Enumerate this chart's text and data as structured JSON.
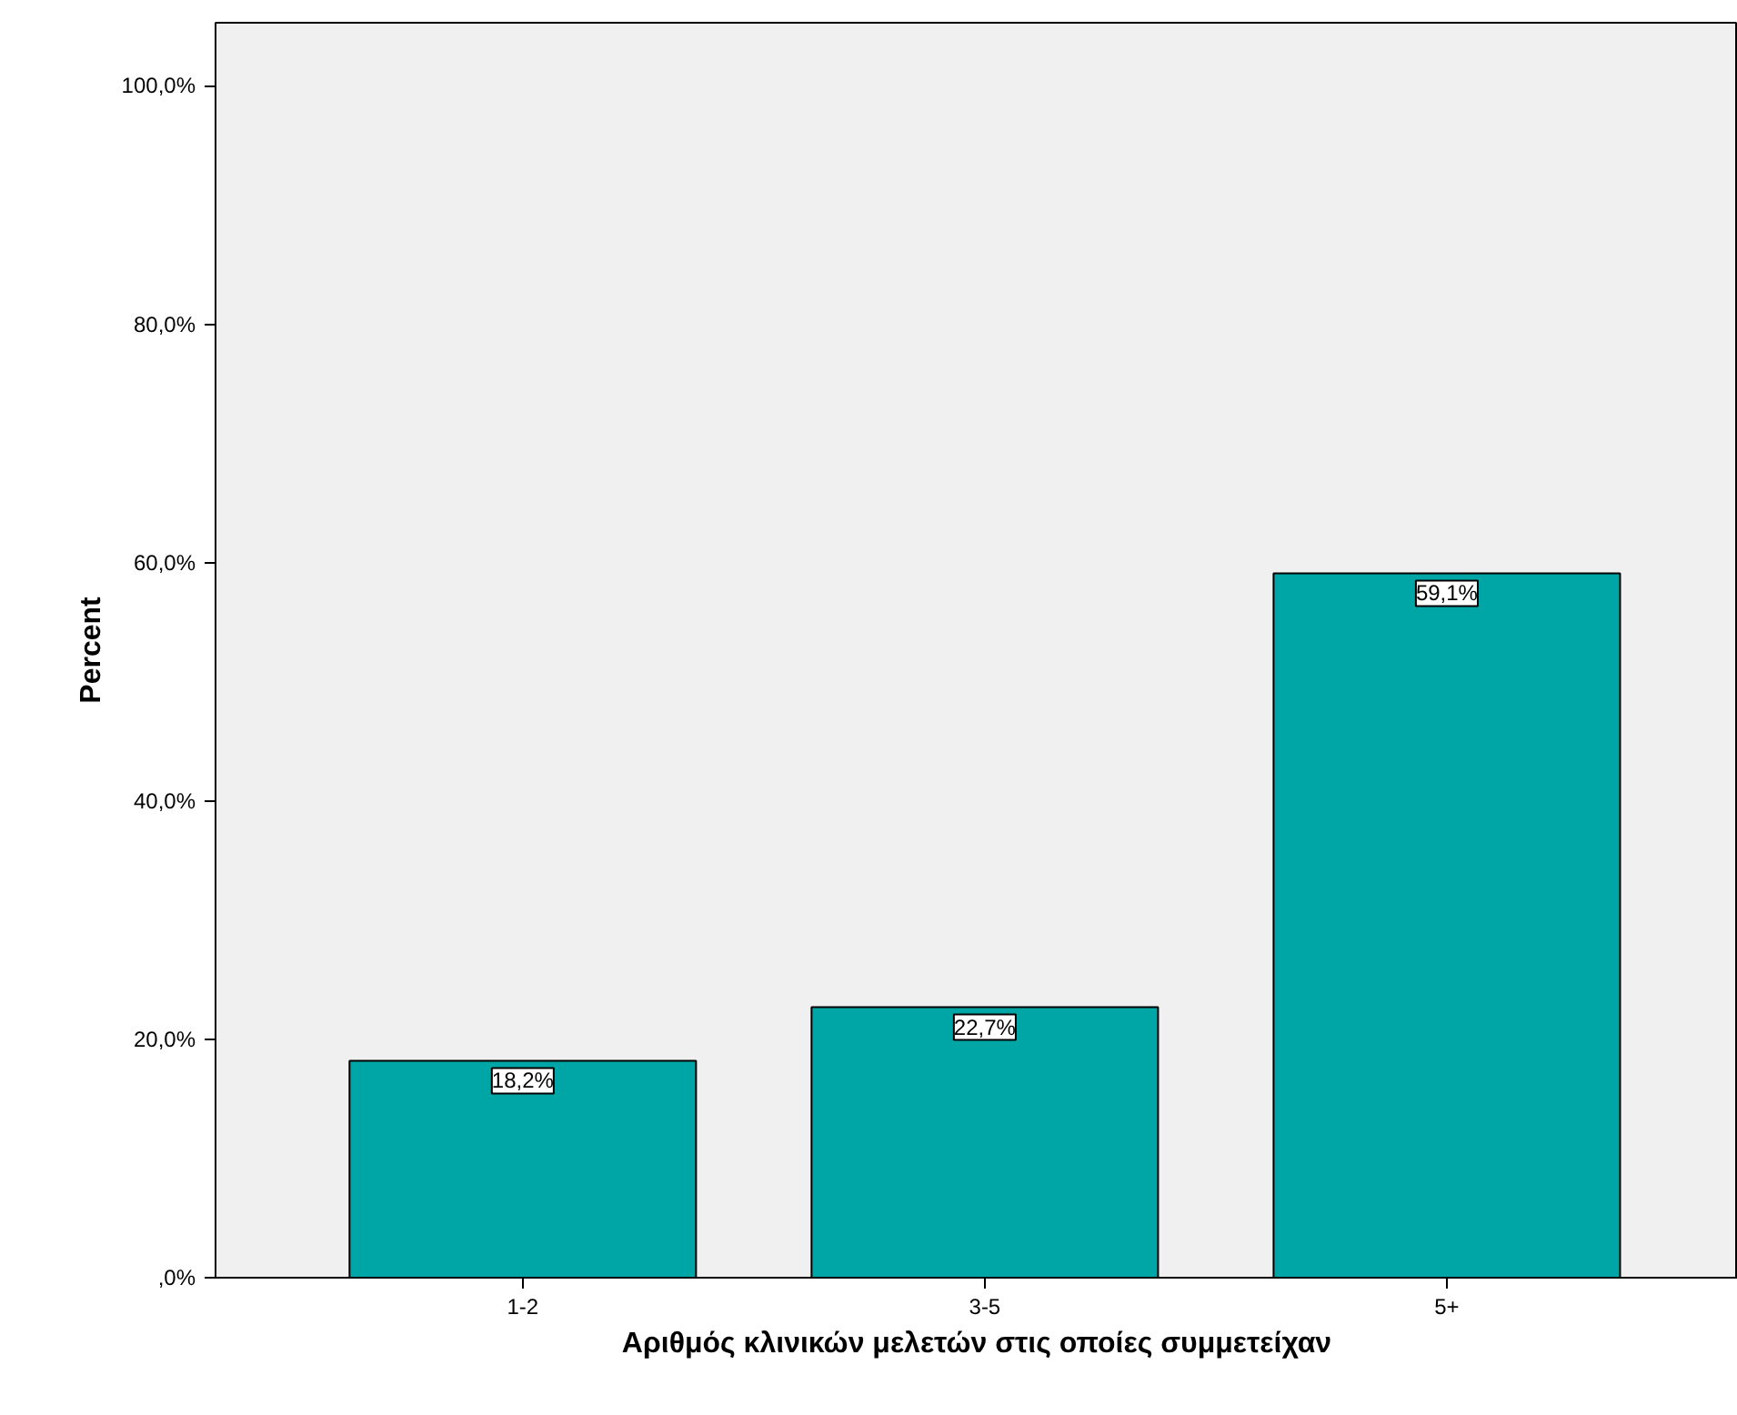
{
  "chart_data": {
    "type": "bar",
    "xlabel": "Αριθμός κλινικών μελετών στις οποίες συμμετείχαν",
    "ylabel": "Percent",
    "categories": [
      "1-2",
      "3-5",
      "5+"
    ],
    "values": [
      18.2,
      22.7,
      59.1
    ],
    "value_labels": [
      "18,2%",
      "22,7%",
      "59,1%"
    ],
    "color": "#00a6a6",
    "ylim": [
      0,
      105.3
    ],
    "yticks": [
      {
        "value": 0,
        "label": ",0%"
      },
      {
        "value": 20,
        "label": "20,0%"
      },
      {
        "value": 40,
        "label": "40,0%"
      },
      {
        "value": 60,
        "label": "60,0%"
      },
      {
        "value": 80,
        "label": "80,0%"
      },
      {
        "value": 100,
        "label": "100,0%"
      }
    ],
    "grid": false
  }
}
